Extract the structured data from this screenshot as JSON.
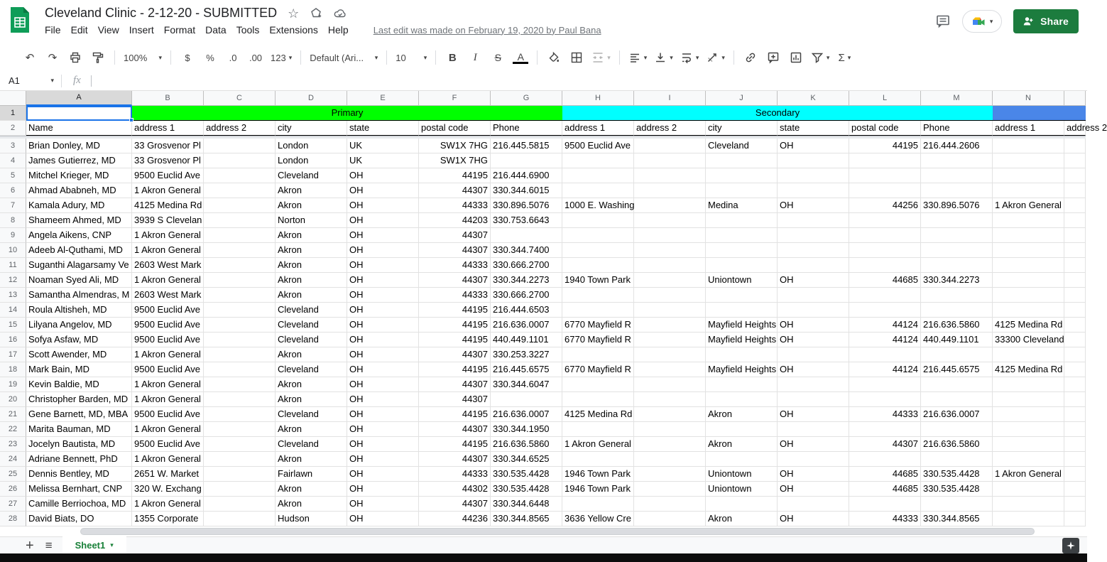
{
  "titlebar": {
    "title": "Cleveland Clinic - 2-12-20 - SUBMITTED",
    "menus": [
      "File",
      "Edit",
      "View",
      "Insert",
      "Format",
      "Data",
      "Tools",
      "Extensions",
      "Help"
    ],
    "last_edit": "Last edit was made on February 19, 2020 by Paul Bana",
    "share_label": "Share"
  },
  "icons": {
    "star": "☆",
    "undo": "↶",
    "redo": "↷",
    "caret": "▾",
    "plus": "+",
    "all_sheets": "≡"
  },
  "toolbar": {
    "zoom": "100%",
    "currency": "$",
    "percent": "%",
    "decimal_decrease": ".0",
    "decimal_increase": ".00",
    "more_formats": "123",
    "font_name": "Default (Ari...",
    "font_size": "10",
    "bold": "B",
    "italic": "I",
    "strikethrough": "S",
    "text_color": "A",
    "functions": "Σ"
  },
  "formula_bar": {
    "cell_ref": "A1",
    "fx_label": "fx"
  },
  "colors": {
    "primary_section": "#00ff00",
    "secondary_section": "#00ffff",
    "tertiary_section": "#4a86e8",
    "selection": "#1a73e8",
    "share_button": "#1c7c3e",
    "sheet_tab_text": "#188038"
  },
  "sheet": {
    "col_letters": [
      "A",
      "B",
      "C",
      "D",
      "E",
      "F",
      "G",
      "H",
      "I",
      "J",
      "K",
      "L",
      "M",
      "N",
      ""
    ],
    "first_data_row": 3,
    "sections": {
      "primary": {
        "label": "Primary"
      },
      "secondary": {
        "label": "Secondary"
      },
      "tertiary": {
        "label": ""
      }
    },
    "headers": [
      "Name",
      "address 1",
      "address 2",
      "city",
      "state",
      "postal code",
      "Phone",
      "address 1",
      "address 2",
      "city",
      "state",
      "postal code",
      "Phone",
      "address 1",
      "address 2"
    ],
    "rows": [
      [
        "Brian Donley, MD",
        "33 Grosvenor Pl",
        "",
        "London",
        "UK",
        "SW1X 7HG",
        "216.445.5815",
        "9500 Euclid Ave",
        "",
        "Cleveland",
        "OH",
        "44195",
        "216.444.2606",
        ""
      ],
      [
        "James Gutierrez, MD",
        "33 Grosvenor Pl",
        "",
        "London",
        "UK",
        "SW1X 7HG",
        "",
        "",
        "",
        "",
        "",
        "",
        "",
        ""
      ],
      [
        "Mitchel Krieger, MD",
        "9500 Euclid Ave",
        "",
        "Cleveland",
        "OH",
        "44195",
        "216.444.6900",
        "",
        "",
        "",
        "",
        "",
        "",
        ""
      ],
      [
        "Ahmad Ababneh, MD",
        "1 Akron General",
        "",
        "Akron",
        "OH",
        "44307",
        "330.344.6015",
        "",
        "",
        "",
        "",
        "",
        "",
        ""
      ],
      [
        "Kamala Adury, MD",
        "4125 Medina Rd",
        "",
        "Akron",
        "OH",
        "44333",
        "330.896.5076",
        "1000 E. Washing",
        "",
        "Medina",
        "OH",
        "44256",
        "330.896.5076",
        "1 Akron General"
      ],
      [
        "Shameem Ahmed, MD",
        "3939 S Clevelan",
        "",
        "Norton",
        "OH",
        "44203",
        "330.753.6643",
        "",
        "",
        "",
        "",
        "",
        "",
        ""
      ],
      [
        "Angela Aikens, CNP",
        "1 Akron General",
        "",
        "Akron",
        "OH",
        "44307",
        "",
        "",
        "",
        "",
        "",
        "",
        "",
        ""
      ],
      [
        "Adeeb Al-Quthami, MD",
        "1 Akron General",
        "",
        "Akron",
        "OH",
        "44307",
        "330.344.7400",
        "",
        "",
        "",
        "",
        "",
        "",
        ""
      ],
      [
        "Suganthi Alagarsamy Ve",
        "2603 West Mark",
        "",
        "Akron",
        "OH",
        "44333",
        "330.666.2700",
        "",
        "",
        "",
        "",
        "",
        "",
        ""
      ],
      [
        "Noaman Syed Ali, MD",
        "1 Akron General",
        "",
        "Akron",
        "OH",
        "44307",
        "330.344.2273",
        "1940 Town Park",
        "",
        "Uniontown",
        "OH",
        "44685",
        "330.344.2273",
        ""
      ],
      [
        "Samantha Almendras, M",
        "2603 West Mark",
        "",
        "Akron",
        "OH",
        "44333",
        "330.666.2700",
        "",
        "",
        "",
        "",
        "",
        "",
        ""
      ],
      [
        "Roula Altisheh, MD",
        "9500 Euclid Ave",
        "",
        "Cleveland",
        "OH",
        "44195",
        "216.444.6503",
        "",
        "",
        "",
        "",
        "",
        "",
        ""
      ],
      [
        "Lilyana Angelov, MD",
        "9500 Euclid Ave",
        "",
        "Cleveland",
        "OH",
        "44195",
        "216.636.0007",
        "6770 Mayfield R",
        "",
        "Mayfield Heights",
        "OH",
        "44124",
        "216.636.5860",
        "4125 Medina Rd"
      ],
      [
        "Sofya Asfaw, MD",
        "9500 Euclid Ave",
        "",
        "Cleveland",
        "OH",
        "44195",
        "440.449.1101",
        "6770 Mayfield R",
        "",
        "Mayfield Heights",
        "OH",
        "44124",
        "440.449.1101",
        "33300 Cleveland"
      ],
      [
        "Scott Awender, MD",
        "1 Akron General",
        "",
        "Akron",
        "OH",
        "44307",
        "330.253.3227",
        "",
        "",
        "",
        "",
        "",
        "",
        ""
      ],
      [
        "Mark Bain, MD",
        "9500 Euclid Ave",
        "",
        "Cleveland",
        "OH",
        "44195",
        "216.445.6575",
        "6770 Mayfield R",
        "",
        "Mayfield Heights",
        "OH",
        "44124",
        "216.445.6575",
        "4125 Medina Rd"
      ],
      [
        "Kevin Baldie, MD",
        "1 Akron General",
        "",
        "Akron",
        "OH",
        "44307",
        "330.344.6047",
        "",
        "",
        "",
        "",
        "",
        "",
        ""
      ],
      [
        "Christopher Barden, MD",
        "1 Akron General",
        "",
        "Akron",
        "OH",
        "44307",
        "",
        "",
        "",
        "",
        "",
        "",
        "",
        ""
      ],
      [
        "Gene Barnett, MD, MBA",
        "9500 Euclid Ave",
        "",
        "Cleveland",
        "OH",
        "44195",
        "216.636.0007",
        "4125 Medina Rd",
        "",
        "Akron",
        "OH",
        "44333",
        "216.636.0007",
        ""
      ],
      [
        "Marita Bauman, MD",
        "1 Akron General",
        "",
        "Akron",
        "OH",
        "44307",
        "330.344.1950",
        "",
        "",
        "",
        "",
        "",
        "",
        ""
      ],
      [
        "Jocelyn Bautista, MD",
        "9500 Euclid Ave",
        "",
        "Cleveland",
        "OH",
        "44195",
        "216.636.5860",
        "1 Akron General",
        "",
        "Akron",
        "OH",
        "44307",
        "216.636.5860",
        ""
      ],
      [
        "Adriane Bennett, PhD",
        "1 Akron General",
        "",
        "Akron",
        "OH",
        "44307",
        "330.344.6525",
        "",
        "",
        "",
        "",
        "",
        "",
        ""
      ],
      [
        "Dennis Bentley, MD",
        "2651 W. Market",
        "",
        "Fairlawn",
        "OH",
        "44333",
        "330.535.4428",
        "1946 Town Park",
        "",
        "Uniontown",
        "OH",
        "44685",
        "330.535.4428",
        "1 Akron General"
      ],
      [
        "Melissa Bernhart, CNP",
        "320 W. Exchang",
        "",
        "Akron",
        "OH",
        "44302",
        "330.535.4428",
        "1946 Town Park",
        "",
        "Uniontown",
        "OH",
        "44685",
        "330.535.4428",
        ""
      ],
      [
        "Camille Berriochoa, MD",
        "1 Akron General",
        "",
        "Akron",
        "OH",
        "44307",
        "330.344.6448",
        "",
        "",
        "",
        "",
        "",
        "",
        ""
      ],
      [
        "David Biats, DO",
        "1355 Corporate",
        "",
        "Hudson",
        "OH",
        "44236",
        "330.344.8565",
        "3636 Yellow Cre",
        "",
        "Akron",
        "OH",
        "44333",
        "330.344.8565",
        ""
      ]
    ]
  },
  "tabbar": {
    "sheet_name": "Sheet1"
  }
}
